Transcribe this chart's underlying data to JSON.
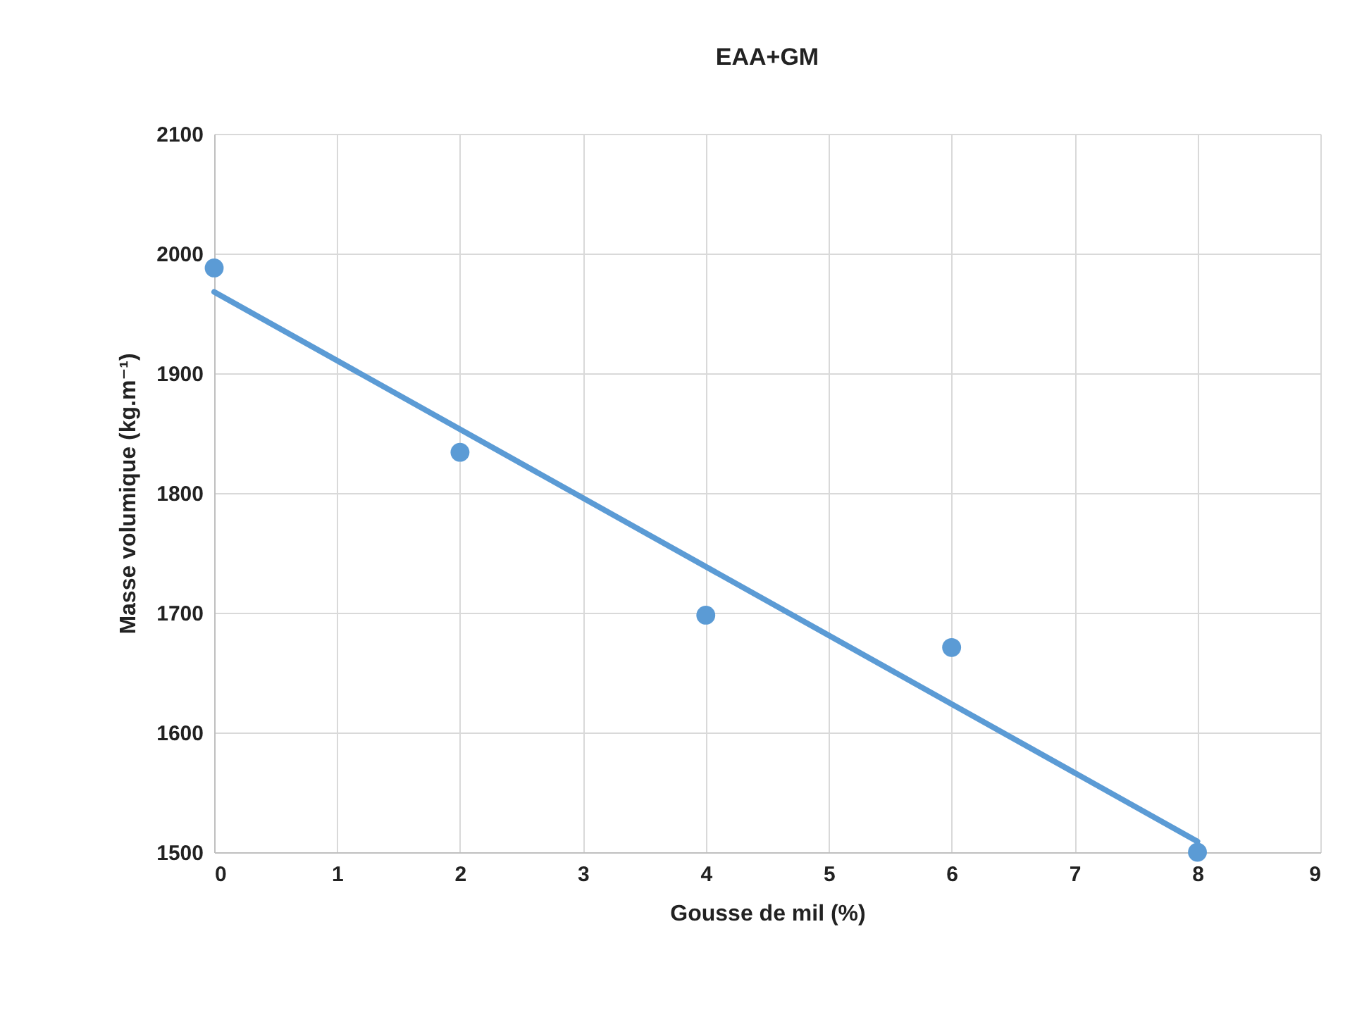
{
  "chart_data": {
    "type": "scatter",
    "title": "EAA+GM",
    "xlabel": "Gousse de mil (%)",
    "ylabel": "Masse volumique (kg.m⁻¹)",
    "x": [
      0,
      2,
      4,
      6,
      8
    ],
    "series": [
      {
        "color": "#5b9bd5",
        "marker": "circle",
        "values": [
          1988,
          1834,
          1698,
          1671,
          1500
        ]
      },
      {
        "type": "line",
        "color": "#5b9bd5",
        "x": [
          0,
          8
        ],
        "values": [
          1968,
          1509
        ]
      }
    ],
    "xlim": [
      0,
      9
    ],
    "xticks": [
      0,
      1,
      2,
      3,
      4,
      5,
      6,
      7,
      8,
      9
    ],
    "ylim": [
      1500,
      2100
    ],
    "yticks": [
      1500,
      1600,
      1700,
      1800,
      1900,
      2000,
      2100
    ],
    "grid": true,
    "line_style": "solid"
  }
}
